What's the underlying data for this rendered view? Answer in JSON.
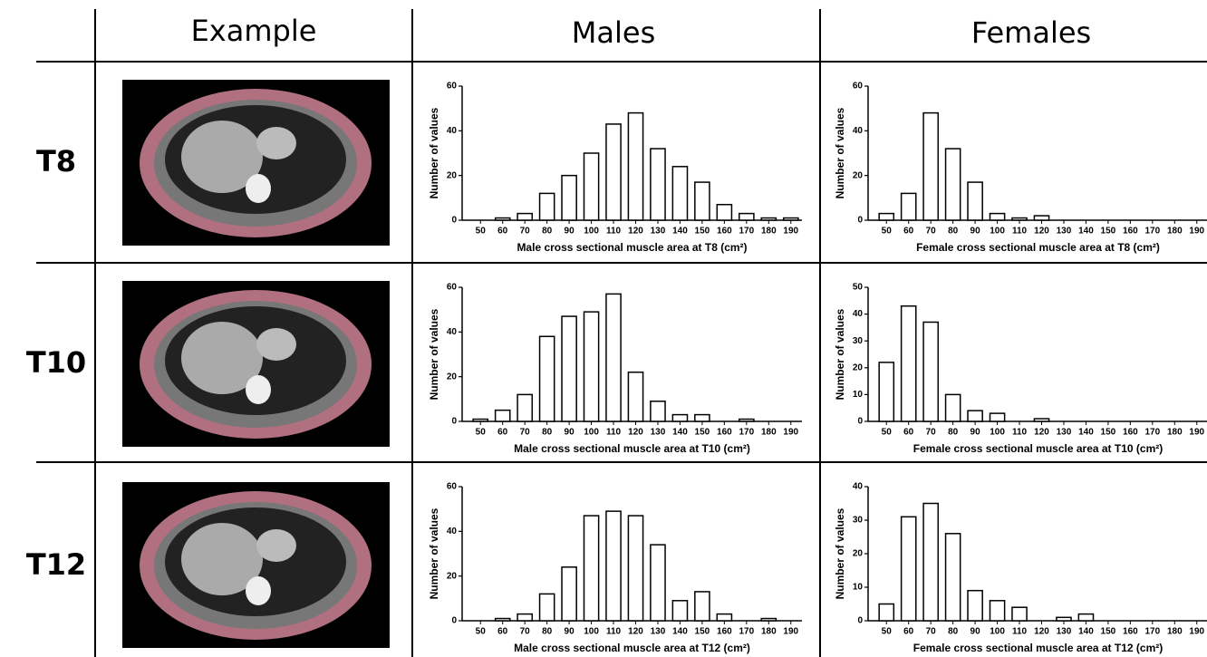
{
  "table": {
    "header": [
      "Example",
      "Males",
      "Females"
    ],
    "rows": [
      "T8",
      "T10",
      "T12"
    ]
  },
  "chart_data": [
    {
      "type": "bar",
      "xlabel": "Male cross sectional muscle area at T8 (cm²)",
      "ylabel": "Number of values",
      "color": "#ffffff",
      "edgecolor": "#000000",
      "categories": [
        50,
        60,
        70,
        80,
        90,
        100,
        110,
        120,
        130,
        140,
        150,
        160,
        170,
        180,
        190
      ],
      "values": [
        0,
        1,
        3,
        12,
        20,
        30,
        43,
        48,
        32,
        24,
        17,
        7,
        3,
        1,
        1
      ],
      "ylim": [
        0,
        60
      ],
      "yticks": [
        0,
        20,
        40,
        60
      ]
    },
    {
      "type": "bar",
      "xlabel": "Female cross sectional muscle area at T8 (cm²)",
      "ylabel": "Number of values",
      "color": "#ffffff",
      "edgecolor": "#000000",
      "categories": [
        50,
        60,
        70,
        80,
        90,
        100,
        110,
        120,
        130,
        140,
        150,
        160,
        170,
        180,
        190
      ],
      "values": [
        3,
        12,
        48,
        32,
        17,
        3,
        1,
        2,
        0,
        0,
        0,
        0,
        0,
        0,
        0
      ],
      "ylim": [
        0,
        60
      ],
      "yticks": [
        0,
        20,
        40,
        60
      ]
    },
    {
      "type": "bar",
      "xlabel": "Male cross sectional muscle area at T10 (cm²)",
      "ylabel": "Number of values",
      "color": "#ffffff",
      "edgecolor": "#000000",
      "categories": [
        50,
        60,
        70,
        80,
        90,
        100,
        110,
        120,
        130,
        140,
        150,
        160,
        170,
        180,
        190
      ],
      "values": [
        1,
        5,
        12,
        38,
        47,
        49,
        57,
        22,
        9,
        3,
        3,
        0,
        1,
        0,
        0
      ],
      "ylim": [
        0,
        60
      ],
      "yticks": [
        0,
        20,
        40,
        60
      ]
    },
    {
      "type": "bar",
      "xlabel": "Female cross sectional muscle area at T10 (cm²)",
      "ylabel": "Number of values",
      "color": "#ffffff",
      "edgecolor": "#000000",
      "categories": [
        50,
        60,
        70,
        80,
        90,
        100,
        110,
        120,
        130,
        140,
        150,
        160,
        170,
        180,
        190
      ],
      "values": [
        22,
        43,
        37,
        10,
        4,
        3,
        0,
        1,
        0,
        0,
        0,
        0,
        0,
        0,
        0
      ],
      "ylim": [
        0,
        50
      ],
      "yticks": [
        0,
        10,
        20,
        30,
        40,
        50
      ]
    },
    {
      "type": "bar",
      "xlabel": "Male cross sectional muscle area at T12 (cm²)",
      "ylabel": "Number of values",
      "color": "#ffffff",
      "edgecolor": "#000000",
      "categories": [
        50,
        60,
        70,
        80,
        90,
        100,
        110,
        120,
        130,
        140,
        150,
        160,
        170,
        180,
        190
      ],
      "values": [
        0,
        1,
        3,
        12,
        24,
        47,
        49,
        47,
        34,
        9,
        13,
        3,
        0,
        1,
        0
      ],
      "ylim": [
        0,
        60
      ],
      "yticks": [
        0,
        20,
        40,
        60
      ]
    },
    {
      "type": "bar",
      "xlabel": "Female cross sectional muscle area at T12 (cm²)",
      "ylabel": "Number of values",
      "color": "#ffffff",
      "edgecolor": "#000000",
      "categories": [
        50,
        60,
        70,
        80,
        90,
        100,
        110,
        120,
        130,
        140,
        150,
        160,
        170,
        180,
        190
      ],
      "values": [
        5,
        31,
        35,
        26,
        9,
        6,
        4,
        0,
        1,
        2,
        0,
        0,
        0,
        0,
        0
      ],
      "ylim": [
        0,
        40
      ],
      "yticks": [
        0,
        10,
        20,
        30,
        40
      ]
    }
  ]
}
